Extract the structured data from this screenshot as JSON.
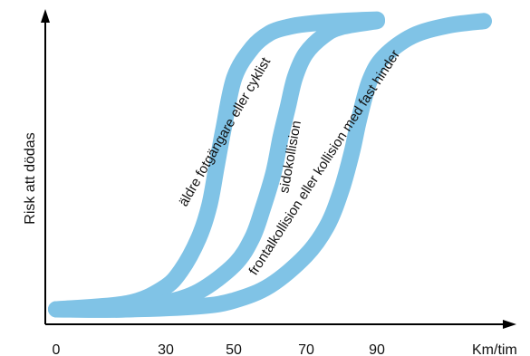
{
  "chart_data": {
    "type": "line",
    "xlabel": "Km/tim",
    "ylabel": "Risk att dödas",
    "x_ticks": [
      "0",
      "30",
      "50",
      "70",
      "90"
    ],
    "xlim": [
      0,
      130
    ],
    "ylim": [
      0,
      1
    ],
    "grid": false,
    "legend": "none",
    "series_color": "#80c3e6",
    "series": [
      {
        "name": "äldre fotgängare eller cyklist",
        "x": [
          0,
          20,
          30,
          35,
          40,
          43,
          45,
          47,
          50,
          55,
          60,
          65,
          70,
          80,
          90
        ],
        "y": [
          0.02,
          0.04,
          0.09,
          0.15,
          0.26,
          0.37,
          0.5,
          0.63,
          0.8,
          0.9,
          0.95,
          0.97,
          0.98,
          0.99,
          0.995
        ]
      },
      {
        "name": "sidokollision",
        "x": [
          0,
          20,
          30,
          40,
          50,
          55,
          58,
          61,
          63,
          65,
          67,
          70,
          75,
          80,
          90
        ],
        "y": [
          0.02,
          0.02,
          0.04,
          0.08,
          0.17,
          0.26,
          0.36,
          0.48,
          0.6,
          0.7,
          0.8,
          0.88,
          0.94,
          0.97,
          0.99
        ]
      },
      {
        "name": "frontalkollision eller kollision med fast hinder",
        "x": [
          0,
          20,
          40,
          50,
          60,
          70,
          76,
          80,
          83,
          85,
          88,
          92,
          100,
          110,
          120
        ],
        "y": [
          0.02,
          0.02,
          0.03,
          0.05,
          0.1,
          0.2,
          0.3,
          0.42,
          0.55,
          0.66,
          0.79,
          0.87,
          0.94,
          0.975,
          0.99
        ]
      }
    ]
  }
}
